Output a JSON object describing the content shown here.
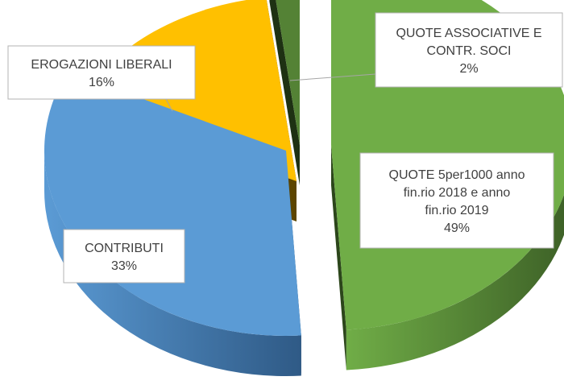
{
  "chart_data": {
    "type": "pie",
    "title": "",
    "style": "3d-exploded",
    "slices": [
      {
        "name_lines": [
          "QUOTE 5per1000 anno",
          "fin.rio 2018 e anno",
          "fin.rio 2019"
        ],
        "value": 49,
        "label": "49%",
        "color": "#70AD47",
        "side": "#3C5F26",
        "dark": "#2C461B"
      },
      {
        "name_lines": [
          "CONTRIBUTI"
        ],
        "value": 33,
        "label": "33%",
        "color": "#5B9BD5",
        "side": "#2F5A86",
        "dark": "#21405F"
      },
      {
        "name_lines": [
          "EROGAZIONI LIBERALI"
        ],
        "value": 16,
        "label": "16%",
        "color": "#FFC000",
        "side": "#7F5F00",
        "dark": "#5C4500"
      },
      {
        "name_lines": [
          "QUOTE ASSOCIATIVE E",
          "CONTR. SOCI"
        ],
        "value": 2,
        "label": "2%",
        "color": "#548235",
        "side": "#2E4A1D",
        "dark": "#1E3113"
      }
    ]
  }
}
